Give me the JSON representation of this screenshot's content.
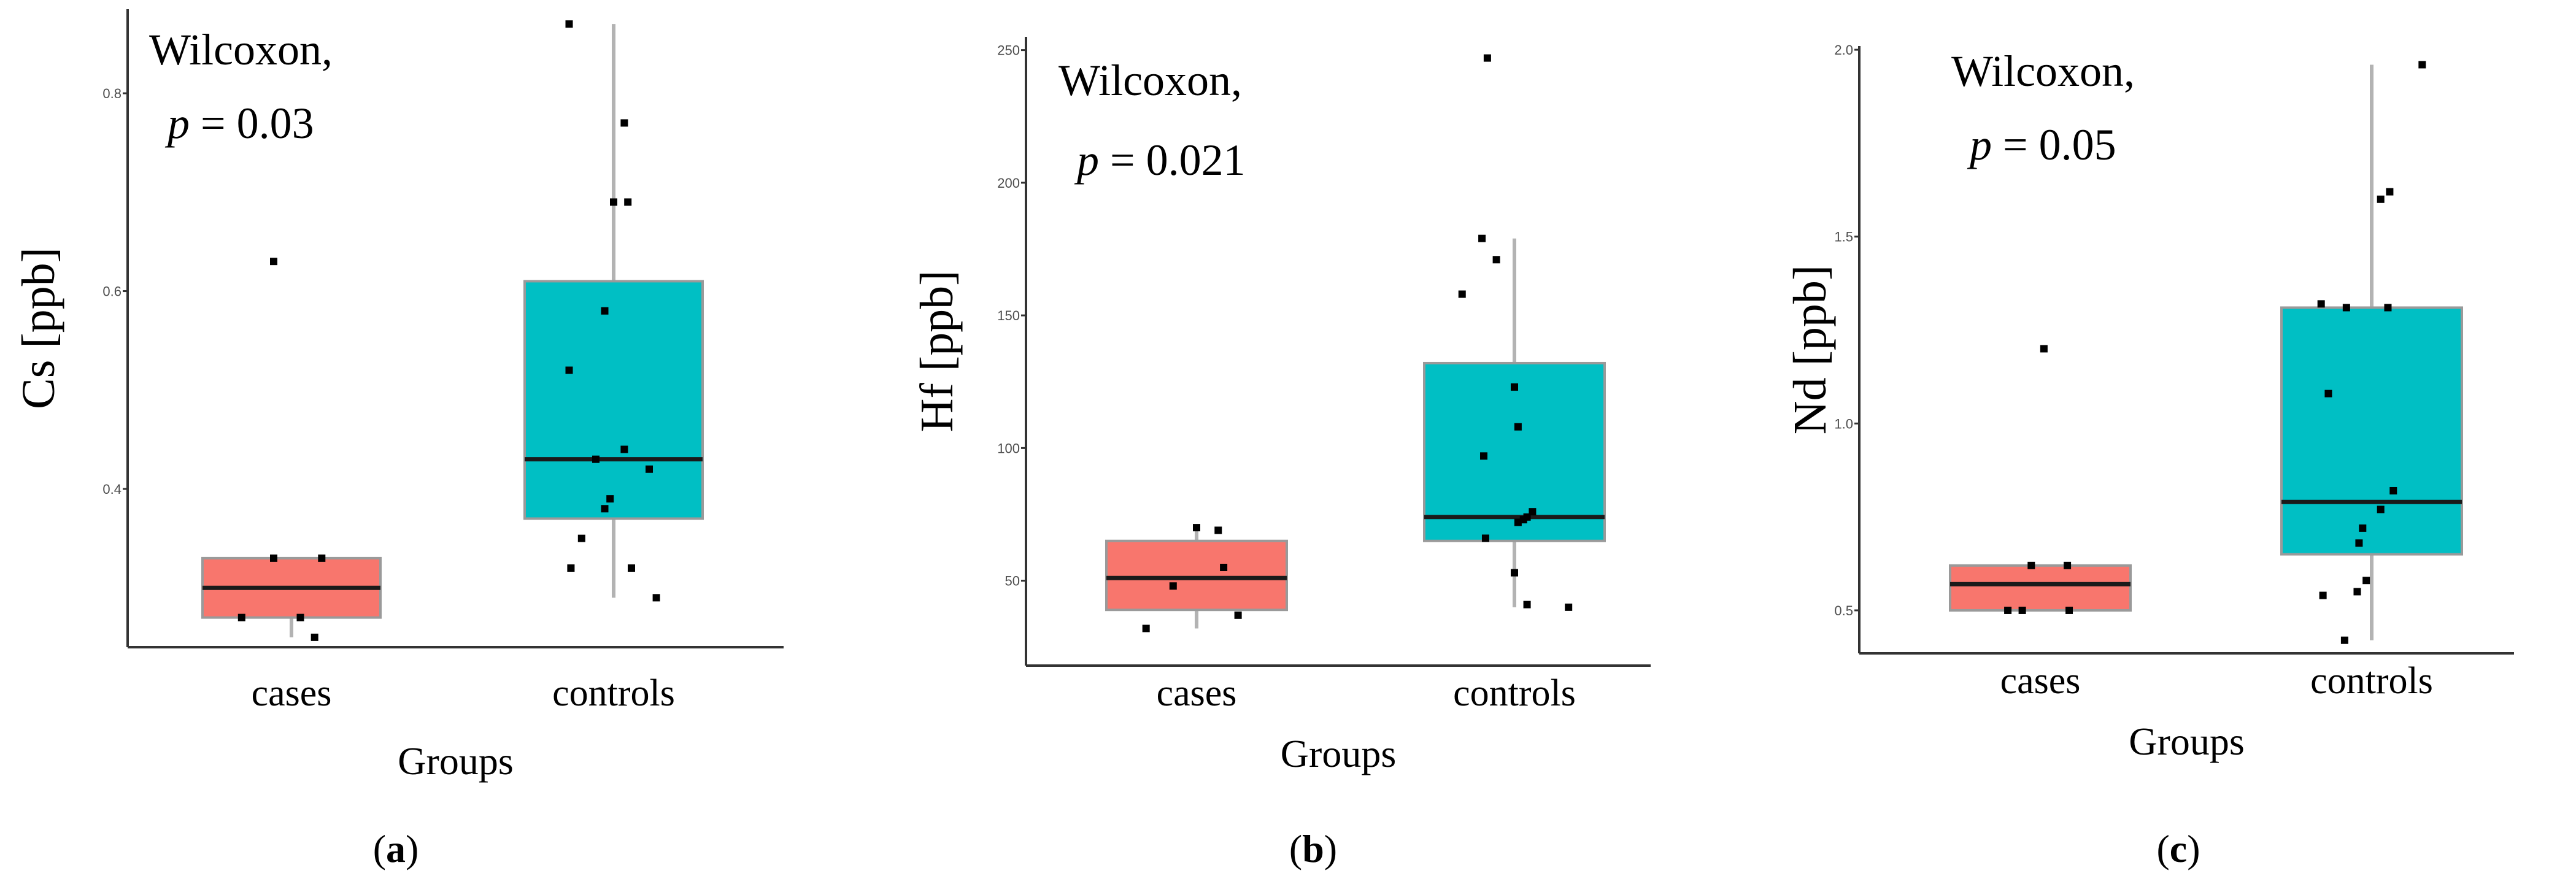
{
  "colors": {
    "cases": "#f8766d",
    "controls": "#00bfc4"
  },
  "chart_data": [
    {
      "type": "box",
      "panel_label": "a",
      "annotation": {
        "test": "Wilcoxon,",
        "p_symbol": "p",
        "p_text": "= 0.03"
      },
      "xlabel": "Groups",
      "ylabel": "Cs [ppb]",
      "categories": [
        "cases",
        "controls"
      ],
      "ylim": [
        0.24,
        0.885
      ],
      "yticks": [
        0.4,
        0.6,
        0.8
      ],
      "ytick_labels": [
        "0.4",
        "0.6",
        "0.8"
      ],
      "boxes": [
        {
          "category": "cases",
          "whisker_low": 0.25,
          "q1": 0.27,
          "median": 0.3,
          "q3": 0.33,
          "whisker_high": 0.33
        },
        {
          "category": "controls",
          "whisker_low": 0.29,
          "q1": 0.37,
          "median": 0.43,
          "q3": 0.61,
          "whisker_high": 0.87
        }
      ],
      "points": [
        {
          "category": "cases",
          "values": [
            0.63,
            0.33,
            0.33,
            0.27,
            0.27,
            0.25
          ],
          "jitter": [
            -0.1,
            -0.1,
            0.17,
            -0.28,
            0.05,
            0.13
          ]
        },
        {
          "category": "controls",
          "values": [
            0.87,
            0.77,
            0.69,
            0.69,
            0.58,
            0.52,
            0.44,
            0.43,
            0.42,
            0.39,
            0.38,
            0.35,
            0.32,
            0.32,
            0.29
          ],
          "jitter": [
            -0.25,
            0.06,
            0.0,
            0.08,
            -0.05,
            -0.25,
            0.06,
            -0.1,
            0.2,
            -0.02,
            -0.05,
            -0.18,
            -0.24,
            0.1,
            0.24
          ]
        }
      ]
    },
    {
      "type": "box",
      "panel_label": "b",
      "annotation": {
        "test": "Wilcoxon,",
        "p_symbol": "p",
        "p_text": "= 0.021"
      },
      "xlabel": "Groups",
      "ylabel": "Hf [ppb]",
      "categories": [
        "cases",
        "controls"
      ],
      "ylim": [
        18,
        255
      ],
      "yticks": [
        50,
        100,
        150,
        200,
        250
      ],
      "ytick_labels": [
        "50",
        "100",
        "150",
        "200",
        "250"
      ],
      "boxes": [
        {
          "category": "cases",
          "whisker_low": 32,
          "q1": 39,
          "median": 51,
          "q3": 65,
          "whisker_high": 70
        },
        {
          "category": "controls",
          "whisker_low": 40,
          "q1": 65,
          "median": 74,
          "q3": 132,
          "whisker_high": 179
        }
      ],
      "points": [
        {
          "category": "cases",
          "values": [
            70,
            69,
            55,
            48,
            37,
            32
          ],
          "jitter": [
            0.0,
            0.12,
            0.15,
            -0.13,
            0.23,
            -0.28
          ]
        },
        {
          "category": "controls",
          "values": [
            247,
            179,
            171,
            158,
            123,
            108,
            97,
            76,
            74,
            73,
            72,
            66,
            53,
            41,
            40
          ],
          "jitter": [
            -0.15,
            -0.18,
            -0.1,
            -0.29,
            0.0,
            0.02,
            -0.17,
            0.1,
            0.07,
            0.05,
            0.02,
            -0.16,
            0.0,
            0.07,
            0.3
          ]
        }
      ]
    },
    {
      "type": "box",
      "panel_label": "c",
      "annotation": {
        "test": "Wilcoxon,",
        "p_symbol": "p",
        "p_text": "= 0.05"
      },
      "xlabel": "Groups",
      "ylabel": "Nd [ppb]",
      "categories": [
        "cases",
        "controls"
      ],
      "ylim": [
        0.385,
        2.01
      ],
      "yticks": [
        0.5,
        1.0,
        1.5,
        2.0
      ],
      "ytick_labels": [
        "0.5",
        "1.0",
        "1.5",
        "2.0"
      ],
      "boxes": [
        {
          "category": "cases",
          "whisker_low": 0.5,
          "q1": 0.5,
          "median": 0.57,
          "q3": 0.62,
          "whisker_high": 0.62
        },
        {
          "category": "controls",
          "whisker_low": 0.42,
          "q1": 0.65,
          "median": 0.79,
          "q3": 1.31,
          "whisker_high": 1.96
        }
      ],
      "points": [
        {
          "category": "cases",
          "values": [
            1.2,
            0.62,
            0.62,
            0.5,
            0.5,
            0.5
          ],
          "jitter": [
            0.02,
            -0.05,
            0.15,
            -0.18,
            -0.1,
            0.16
          ]
        },
        {
          "category": "controls",
          "values": [
            1.96,
            1.62,
            1.6,
            1.32,
            1.31,
            1.31,
            1.08,
            0.82,
            0.77,
            0.72,
            0.68,
            0.58,
            0.55,
            0.54,
            0.42
          ],
          "jitter": [
            0.28,
            0.1,
            0.05,
            -0.28,
            -0.14,
            0.09,
            -0.24,
            0.12,
            0.05,
            -0.05,
            -0.07,
            -0.03,
            -0.08,
            -0.27,
            -0.15
          ]
        }
      ]
    }
  ]
}
